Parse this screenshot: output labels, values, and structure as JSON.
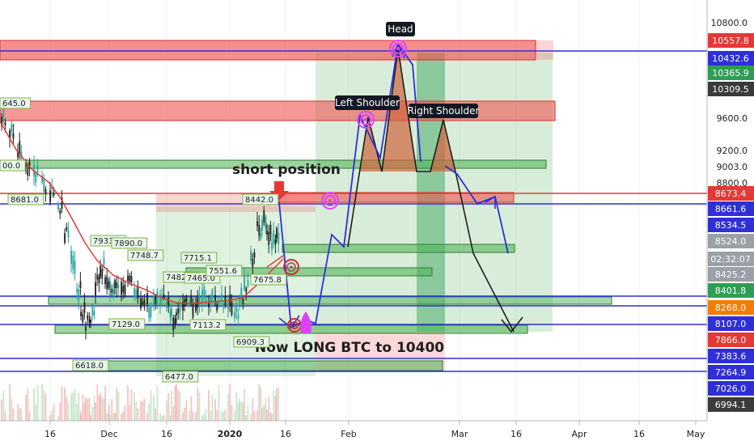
{
  "chart_data": {
    "type": "candlestick",
    "symbol": "BTC",
    "y_axis": {
      "price_ticks": [
        "10800.0",
        "9600.0",
        "9200.0",
        "9003.0",
        "8800.0",
        "8524.0",
        "8425.2",
        "7866.0",
        "7383.6",
        "7264.9",
        "7026.0",
        "6994.1"
      ],
      "price_badges": [
        {
          "text": "10557.8",
          "color": "#e53935"
        },
        {
          "text": "10432.6",
          "color": "#2f2fd8"
        },
        {
          "text": "10365.9",
          "color": "#2e9e55"
        },
        {
          "text": "10309.5",
          "color": "#3b3b3b"
        },
        {
          "text": "8673.4",
          "color": "#e53935"
        },
        {
          "text": "8661.6",
          "color": "#2f2fd8"
        },
        {
          "text": "8534.5",
          "color": "#2f2fd8"
        },
        {
          "text": "8524.0",
          "color": "#9aa0a6"
        },
        {
          "text": "02:32:07",
          "color": "#9aa0a6"
        },
        {
          "text": "8425.2",
          "color": "#9aa0a6"
        },
        {
          "text": "8401.8",
          "color": "#2e9e55"
        },
        {
          "text": "8268.0",
          "color": "#f57c00"
        },
        {
          "text": "8107.0",
          "color": "#2f2fd8"
        },
        {
          "text": "7866.0",
          "color": "#e53935"
        },
        {
          "text": "7383.6",
          "color": "#2f2fd8"
        },
        {
          "text": "7264.9",
          "color": "#2f2fd8"
        },
        {
          "text": "7026.0",
          "color": "#2f2fd8"
        },
        {
          "text": "6994.1",
          "color": "#3b3b3b"
        }
      ]
    },
    "x_axis": {
      "ticks": [
        "16",
        "Dec",
        "16",
        "2020",
        "16",
        "Feb",
        "Mar",
        "16",
        "Apr",
        "16",
        "May"
      ]
    },
    "price_labels": [
      "645.0",
      "00.0",
      "8681.0",
      "7933.0",
      "7890.0",
      "7748.7",
      "7715.1",
      "7482.2",
      "7465.0",
      "7551.6",
      "8442.0",
      "7675.8",
      "7129.0",
      "7113.2",
      "6909.3",
      "6618.0",
      "6477.0"
    ],
    "annotations": {
      "short_position": "short position",
      "long_text": "Now LONG BTC to 10400",
      "head": "Head",
      "left_shoulder": "Left Shoulder",
      "right_shoulder": "Right Shoulder"
    },
    "colors": {
      "bull": "#26a69a",
      "bear": "#1e1e1e",
      "ma": "#e53935",
      "blue_line": "#2f2fd8",
      "red_zone": "#ef5350",
      "green_zone": "#4caf50"
    }
  }
}
